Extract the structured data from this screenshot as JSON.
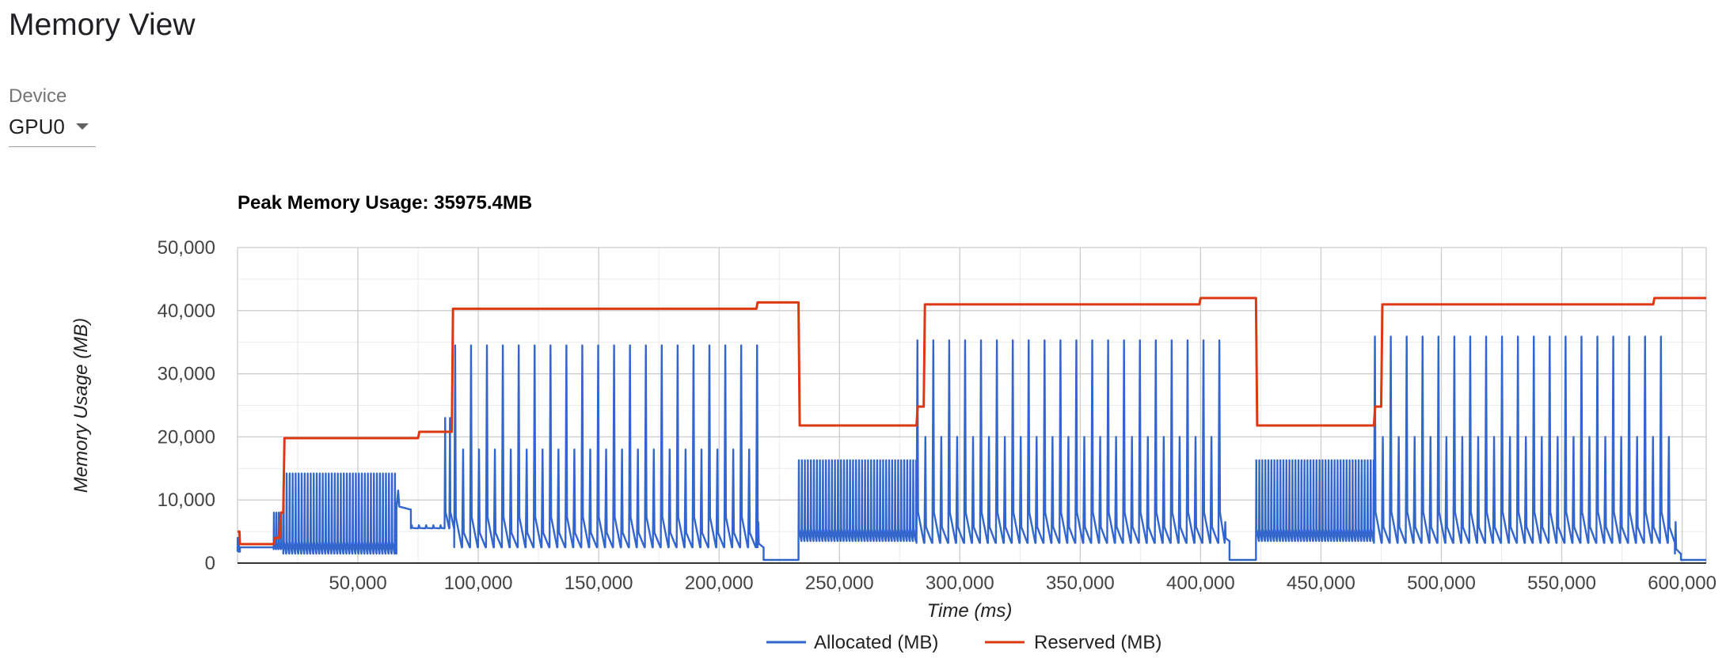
{
  "page": {
    "title": "Memory View"
  },
  "device": {
    "label": "Device",
    "value": "GPU0"
  },
  "colors": {
    "allocated": "#3366cc",
    "reserved": "#dc3912"
  },
  "icons": {
    "device_dropdown": "chevron-down-icon"
  },
  "chart_data": {
    "type": "line",
    "title": "Peak Memory Usage: 35975.4MB",
    "xlabel": "Time (ms)",
    "ylabel": "Memory Usage (MB)",
    "xlim": [
      0,
      610000
    ],
    "ylim": [
      0,
      50000
    ],
    "xticks": [
      50000,
      100000,
      150000,
      200000,
      250000,
      300000,
      350000,
      400000,
      450000,
      500000,
      550000,
      600000
    ],
    "xtick_labels": [
      "50,000",
      "100,000",
      "150,000",
      "200,000",
      "250,000",
      "300,000",
      "350,000",
      "400,000",
      "450,000",
      "500,000",
      "550,000",
      "600,000"
    ],
    "yticks": [
      0,
      10000,
      20000,
      30000,
      40000,
      50000
    ],
    "ytick_labels": [
      "0",
      "10,000",
      "20,000",
      "30,000",
      "40,000",
      "50,000"
    ],
    "grid": true,
    "legend_position": "bottom",
    "series": [
      {
        "name": "Allocated (MB)",
        "phases": [
          {
            "start": 0,
            "end": 1000,
            "base": 1800,
            "peak": 4000,
            "step": 500
          },
          {
            "start": 1000,
            "end": 15000,
            "base": 2500,
            "peak": 2500,
            "step": 14000
          },
          {
            "start": 15000,
            "end": 19000,
            "base": 2200,
            "peak": 8000,
            "step": 1000
          },
          {
            "start": 19000,
            "end": 66000,
            "base": 1500,
            "peak": 14200,
            "step": 1250
          },
          {
            "start": 66000,
            "end": 72000,
            "base": 8500,
            "peak": 11500,
            "step": 6000
          },
          {
            "start": 72000,
            "end": 86000,
            "base": 5500,
            "peak": 6000,
            "step": 3000
          },
          {
            "start": 86000,
            "end": 90000,
            "base": 5500,
            "peak": 23000,
            "step": 2000
          },
          {
            "start": 90000,
            "end": 216000,
            "base": 2500,
            "peak": 34500,
            "step": 3300,
            "minor": 18000,
            "minor_every": 2
          },
          {
            "start": 216000,
            "end": 218500,
            "base": 2500,
            "peak": 6500,
            "step": 2500
          },
          {
            "start": 218500,
            "end": 233000,
            "base": 500,
            "peak": 500,
            "step": 14500
          },
          {
            "start": 233000,
            "end": 282000,
            "base": 3500,
            "peak": 16300,
            "step": 1250
          },
          {
            "start": 282000,
            "end": 410000,
            "base": 3200,
            "peak": 35300,
            "step": 3300,
            "minor": 20000,
            "minor_every": 2
          },
          {
            "start": 410000,
            "end": 412000,
            "base": 3500,
            "peak": 6500,
            "step": 2000
          },
          {
            "start": 412000,
            "end": 423000,
            "base": 500,
            "peak": 500,
            "step": 11000
          },
          {
            "start": 423000,
            "end": 472000,
            "base": 3500,
            "peak": 16300,
            "step": 1250
          },
          {
            "start": 472000,
            "end": 597000,
            "base": 3200,
            "peak": 35900,
            "step": 3300,
            "minor": 20000,
            "minor_every": 2
          },
          {
            "start": 597000,
            "end": 599500,
            "base": 1500,
            "peak": 6500,
            "step": 2500
          },
          {
            "start": 599500,
            "end": 610000,
            "base": 500,
            "peak": 500,
            "step": 10500
          }
        ]
      },
      {
        "name": "Reserved (MB)",
        "x": [
          0,
          800,
          1000,
          15000,
          15500,
          17500,
          18000,
          19000,
          19500,
          75000,
          75500,
          89000,
          89500,
          215500,
          216000,
          233000,
          233500,
          282000,
          282500,
          285000,
          285500,
          399500,
          400000,
          423000,
          423500,
          472000,
          472500,
          475000,
          475500,
          588000,
          588500,
          610000
        ],
        "y": [
          5000,
          5000,
          3000,
          3000,
          4000,
          4000,
          8000,
          8000,
          19800,
          19800,
          20800,
          20800,
          40300,
          40300,
          41300,
          41300,
          21800,
          21800,
          24800,
          24800,
          41000,
          41000,
          42000,
          42000,
          21800,
          21800,
          24800,
          24800,
          41000,
          41000,
          42000,
          42000
        ]
      }
    ]
  }
}
